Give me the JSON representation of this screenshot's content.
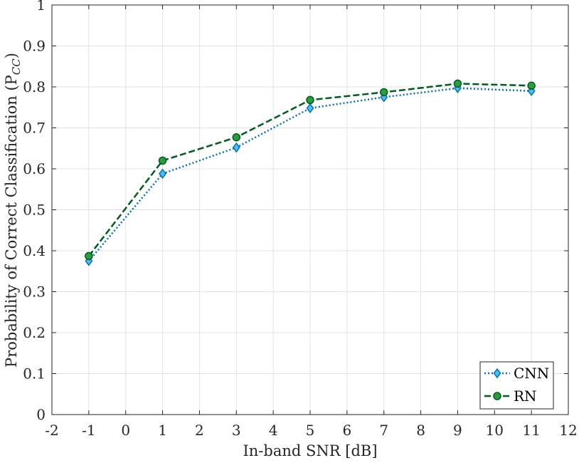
{
  "chart_data": {
    "type": "line",
    "title": "",
    "xlabel": "In-band SNR [dB]",
    "ylabel": "Probability of Correct Classification (P",
    "ylabel_sub": "CC",
    "ylabel_close": ")",
    "xlim": [
      -2,
      12
    ],
    "ylim": [
      0,
      1
    ],
    "xticks": [
      -2,
      -1,
      0,
      1,
      2,
      3,
      4,
      5,
      6,
      7,
      8,
      9,
      10,
      11,
      12
    ],
    "yticks": [
      0,
      0.1,
      0.2,
      0.3,
      0.4,
      0.5,
      0.6,
      0.7,
      0.8,
      0.9,
      1
    ],
    "grid": true,
    "legend_position": "bottom-right",
    "x": [
      -1,
      1,
      3,
      5,
      7,
      9,
      11
    ],
    "series": [
      {
        "name": "CNN",
        "values": [
          0.375,
          0.588,
          0.652,
          0.748,
          0.775,
          0.797,
          0.79
        ],
        "color": "#0072BD",
        "line": "dotted",
        "marker": "diamond"
      },
      {
        "name": "RN",
        "values": [
          0.387,
          0.62,
          0.677,
          0.768,
          0.787,
          0.808,
          0.803
        ],
        "color": "#005C1F",
        "line": "dashed",
        "marker": "circle"
      }
    ]
  }
}
